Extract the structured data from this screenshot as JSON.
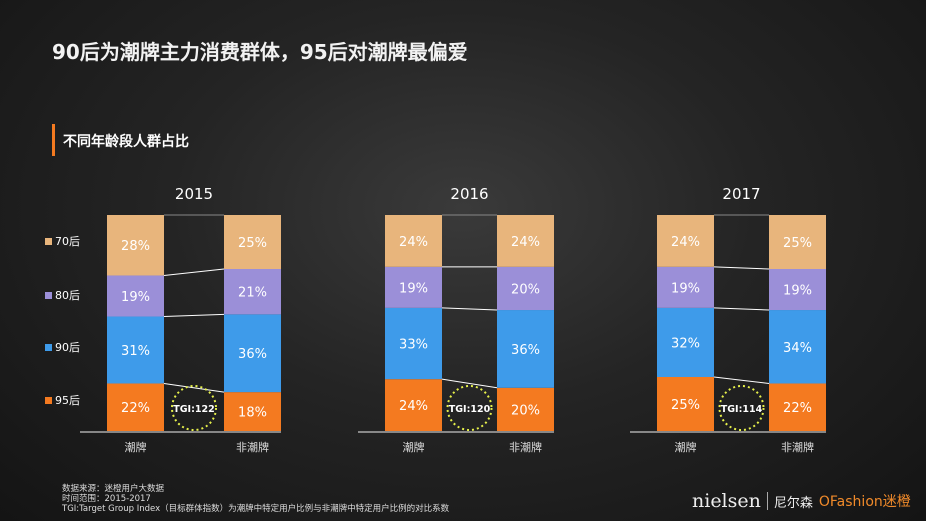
{
  "title": "90后为潮牌主力消费群体，95后对潮牌最偏爱",
  "subtitle": "不同年龄段人群占比",
  "chart_data": {
    "type": "bar",
    "stacked": true,
    "legend_placement": "left",
    "series_names": [
      "95后",
      "90后",
      "80后",
      "70后"
    ],
    "colors": {
      "95后": "#f47a20",
      "90后": "#3e9bea",
      "80后": "#9b8fd8",
      "70后": "#e8b57c"
    },
    "categories": [
      "潮牌",
      "非潮牌"
    ],
    "panels": [
      {
        "title": "2015",
        "values": {
          "潮牌": [
            22,
            31,
            19,
            28
          ],
          "非潮牌": [
            18,
            36,
            21,
            25
          ]
        },
        "tgi": "TGI:122"
      },
      {
        "title": "2016",
        "values": {
          "潮牌": [
            24,
            33,
            19,
            24
          ],
          "非潮牌": [
            20,
            36,
            20,
            24
          ]
        },
        "tgi": "TGI:120"
      },
      {
        "title": "2017",
        "values": {
          "潮牌": [
            25,
            32,
            19,
            24
          ],
          "非潮牌": [
            22,
            34,
            19,
            25
          ]
        },
        "tgi": "TGI:114"
      }
    ]
  },
  "footer": {
    "source": "数据来源：迷橙用户大数据",
    "period": "时间范围：2015-2017",
    "note": "TGI:Target Group Index（目标群体指数）为潮牌中特定用户比例与非潮牌中特定用户比例的对比系数"
  },
  "logos": {
    "nielsen": "nielsen",
    "nielsen_cn": "尼尔森",
    "ofashion": "OFashion迷橙"
  }
}
